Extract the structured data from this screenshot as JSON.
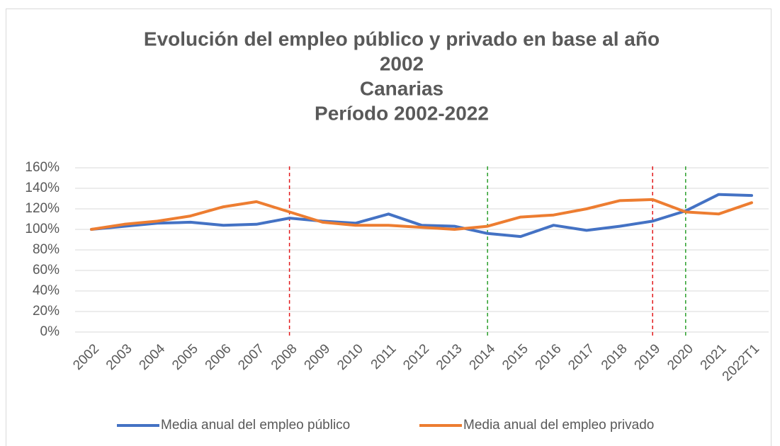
{
  "chart_data": {
    "type": "line",
    "title": [
      "Evolución del empleo público y privado en base al año",
      "2002",
      "Canarias",
      "Período 2002-2022"
    ],
    "categories": [
      "2002",
      "2003",
      "2004",
      "2005",
      "2006",
      "2007",
      "2008",
      "2009",
      "2010",
      "2011",
      "2012",
      "2013",
      "2014",
      "2015",
      "2016",
      "2017",
      "2018",
      "2019",
      "2020",
      "2021",
      "2022T1"
    ],
    "series": [
      {
        "name": "Media anual del empleo público",
        "color": "#4472c4",
        "values": [
          100,
          103,
          106,
          107,
          104,
          105,
          111,
          108,
          106,
          115,
          104,
          103,
          96,
          93,
          104,
          99,
          103,
          108,
          118,
          134,
          133
        ]
      },
      {
        "name": "Media anual del empleo privado",
        "color": "#ed7d31",
        "values": [
          100,
          105,
          108,
          113,
          122,
          127,
          117,
          107,
          104,
          104,
          102,
          100,
          103,
          112,
          114,
          120,
          128,
          129,
          117,
          115,
          126
        ]
      }
    ],
    "ylim": [
      0,
      160
    ],
    "yticks": [
      {
        "value": 0,
        "label": "0%"
      },
      {
        "value": 20,
        "label": "20%"
      },
      {
        "value": 40,
        "label": "40%"
      },
      {
        "value": 60,
        "label": "60%"
      },
      {
        "value": 80,
        "label": "80%"
      },
      {
        "value": 100,
        "label": "100%"
      },
      {
        "value": 120,
        "label": "120%"
      },
      {
        "value": 140,
        "label": "140%"
      },
      {
        "value": 160,
        "label": "160%"
      }
    ],
    "grid": true,
    "legend": "bottom",
    "vlines": [
      {
        "category": "2008",
        "color": "#e31a1c"
      },
      {
        "category": "2014",
        "color": "#2ca02c"
      },
      {
        "category": "2019",
        "color": "#e31a1c"
      },
      {
        "category": "2020",
        "color": "#2ca02c"
      }
    ]
  }
}
